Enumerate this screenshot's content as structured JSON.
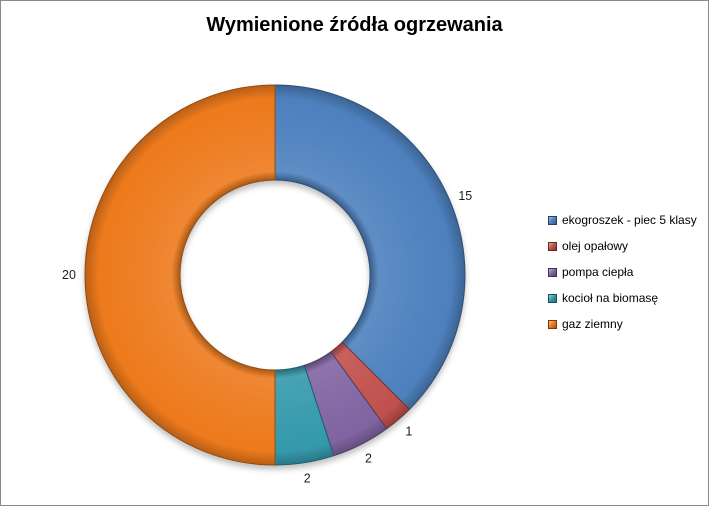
{
  "canvas": {
    "background": "#ffffff",
    "border_color": "#8a8a8a"
  },
  "chart_data": {
    "type": "pie",
    "subtype": "doughnut",
    "title": "Wymienione źródła ogrzewania",
    "categories": [
      "ekogroszek - piec 5 klasy",
      "olej opałowy",
      "pompa ciepła",
      "kocioł na biomasę",
      "gaz ziemny"
    ],
    "values": [
      15,
      1,
      2,
      2,
      20
    ],
    "data_labels": [
      "15",
      "1",
      "2",
      "2",
      "20"
    ],
    "total": 40,
    "colors": [
      "#4D80BD",
      "#C0504D",
      "#8064A2",
      "#3499AC",
      "#ED7A1C"
    ],
    "label_color": "#1f1f1f",
    "title_color": "#000000",
    "start_angle_deg": 0,
    "direction": "clockwise",
    "hole_ratio": 0.5,
    "legend_position": "right",
    "legend_marker": "square",
    "effects": "3d-bevel-with-shadow"
  }
}
